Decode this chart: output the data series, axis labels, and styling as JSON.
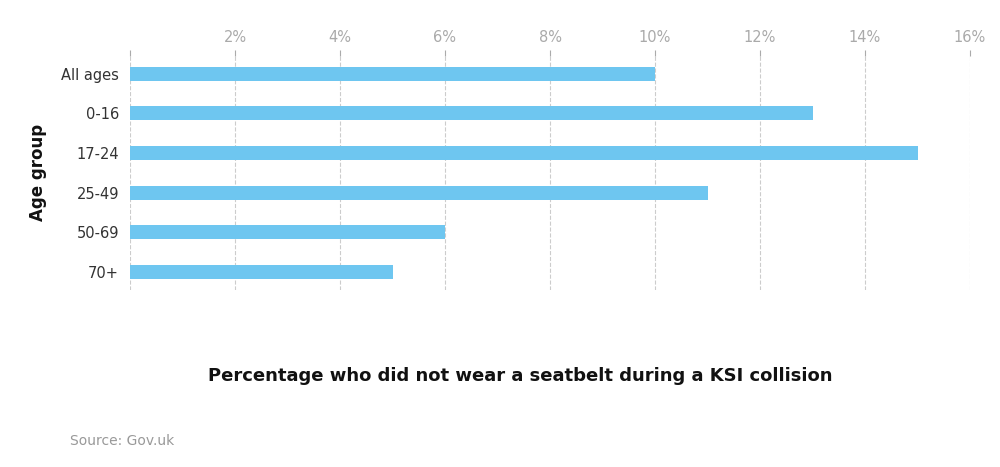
{
  "categories": [
    "All ages",
    "0-16",
    "17-24",
    "25-49",
    "50-69",
    "70+"
  ],
  "values": [
    10.0,
    13.0,
    15.0,
    11.0,
    6.0,
    5.0
  ],
  "bar_color": "#6EC6F0",
  "background_color": "#ffffff",
  "xlabel": "Percentage who did not wear a seatbelt during a KSI collision",
  "ylabel": "Age group",
  "xlim": [
    0,
    16
  ],
  "xticks": [
    0,
    2,
    4,
    6,
    8,
    10,
    12,
    14,
    16
  ],
  "grid_color": "#cccccc",
  "xlabel_fontsize": 13,
  "ylabel_fontsize": 12,
  "tick_fontsize": 10.5,
  "source_text": "Source: Gov.uk",
  "source_fontsize": 10,
  "bar_height": 0.35
}
